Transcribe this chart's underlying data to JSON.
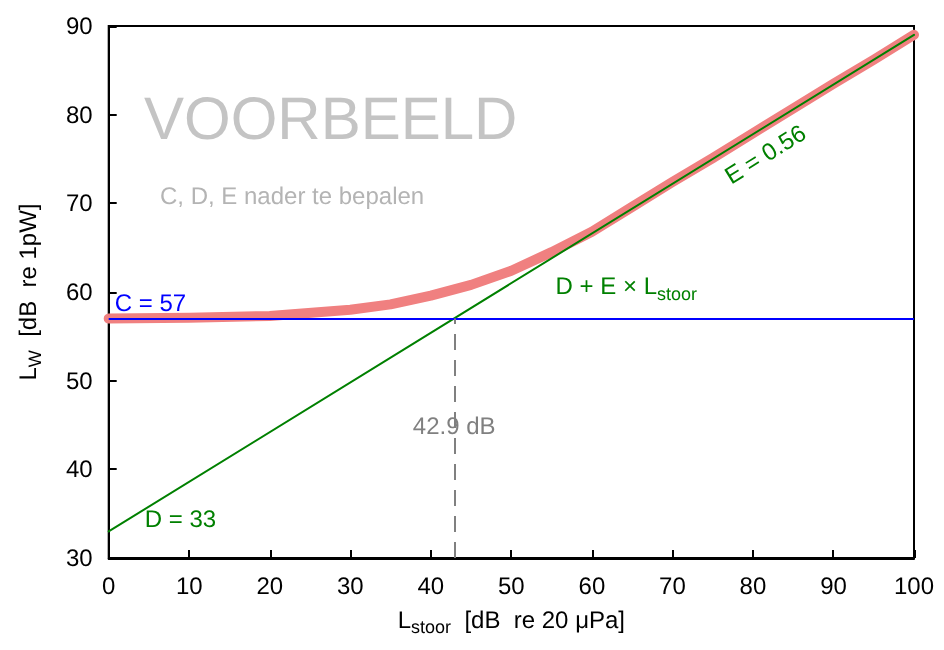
{
  "chart_data": {
    "type": "line",
    "xlabel": "L$_{stoor}$  [dB  re 20 μPa]",
    "ylabel": "L$_{W}$  [dB  re 1pW]",
    "xlim": [
      0,
      100
    ],
    "xticks": [
      0,
      10,
      20,
      30,
      40,
      50,
      60,
      70,
      80,
      90,
      100
    ],
    "ylim": [
      30,
      90
    ],
    "yticks": [
      30,
      40,
      50,
      60,
      70,
      80,
      90
    ],
    "grid": false,
    "legend": false,
    "marker": "none",
    "line_style": "solid",
    "series": [
      {
        "color": "#f08080",
        "x": [
          0,
          10,
          20,
          30,
          35,
          40,
          45,
          50,
          55,
          60,
          65,
          70,
          75,
          80,
          85,
          90,
          95,
          100
        ],
        "values": [
          57,
          57.1,
          57.3,
          58,
          58.6,
          59.6,
          60.8,
          62.4,
          64.5,
          66.8,
          69.6,
          72.4,
          75.1,
          77.9,
          80.7,
          83.5,
          86.2,
          89
        ]
      },
      {
        "name": "D + E × L$_{stoor}$",
        "color": "#008000",
        "x": [
          0,
          100
        ],
        "values": [
          33,
          89
        ]
      }
    ],
    "ref_lines": [
      {
        "axis": "y",
        "value": 57,
        "label": "C = 57",
        "color": "#0000ff",
        "line_style": "solid"
      },
      {
        "axis": "x",
        "value": 42.9,
        "label": "42.9 dB",
        "color": "#808080",
        "line_style": "dashed"
      }
    ],
    "annotations": [
      "VOORBEELD",
      "C, D, E nader te bepalen",
      {
        "text": "E = 0.56",
        "x": 80,
        "y": 77.8
      },
      {
        "text": "D = 33",
        "x": 0,
        "y": 33
      }
    ]
  }
}
